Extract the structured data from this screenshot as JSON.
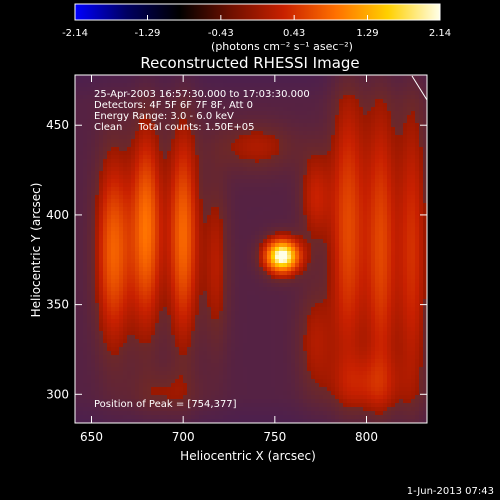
{
  "chart_data": {
    "type": "heatmap",
    "title": "Reconstructed RHESSI Image",
    "xlabel": "Heliocentric X (arcsec)",
    "ylabel": "Heliocentric Y (arcsec)",
    "xlim": [
      641,
      833
    ],
    "ylim": [
      284,
      478
    ],
    "x_ticks": [
      650,
      700,
      750,
      800
    ],
    "y_ticks": [
      300,
      350,
      400,
      450
    ],
    "colorbar": {
      "min": -2.14,
      "max": 2.14,
      "ticks": [
        "-2.14",
        "-1.29",
        "-0.43",
        "0.43",
        "1.29",
        "2.14"
      ],
      "label": "(photons cm⁻² s⁻¹ asec⁻²)",
      "colormap": [
        "#0000ff",
        "#000060",
        "#000000",
        "#701000",
        "#c82000",
        "#ff7000",
        "#ffd000",
        "#ffffe8"
      ]
    },
    "annotations": [
      "25-Apr-2003 16:57:30.000 to 17:03:30.000",
      "Detectors: 4F 5F 6F 7F 8F, Att 0",
      "Energy Range: 3.0 - 6.0 keV",
      "Clean     Total counts: 1.50E+05"
    ],
    "peak_label": "Position of Peak = [754,377]",
    "peak": [
      754,
      377
    ],
    "background_level": -0.35,
    "sources": [
      {
        "x": 754,
        "y": 377,
        "sigma": 7,
        "amp": 2.4
      },
      {
        "x": 754,
        "y": 377,
        "sigma": 3,
        "amp": 0.6
      }
    ],
    "ridges": [
      {
        "x": 662,
        "y": 380,
        "sx": 7,
        "sy": 38,
        "amp": 1.25
      },
      {
        "x": 680,
        "y": 392,
        "sx": 6,
        "sy": 40,
        "amp": 1.35
      },
      {
        "x": 700,
        "y": 388,
        "sx": 6,
        "sy": 42,
        "amp": 1.3
      },
      {
        "x": 718,
        "y": 372,
        "sx": 5,
        "sy": 34,
        "amp": 0.6
      },
      {
        "x": 790,
        "y": 392,
        "sx": 7,
        "sy": 58,
        "amp": 1.05
      },
      {
        "x": 808,
        "y": 382,
        "sx": 6,
        "sy": 60,
        "amp": 1.0
      },
      {
        "x": 825,
        "y": 380,
        "sx": 6,
        "sy": 62,
        "amp": 0.85
      },
      {
        "x": 772,
        "y": 410,
        "sx": 6,
        "sy": 18,
        "amp": 0.7
      },
      {
        "x": 772,
        "y": 330,
        "sx": 7,
        "sy": 22,
        "amp": 0.55
      },
      {
        "x": 740,
        "y": 438,
        "sx": 16,
        "sy": 10,
        "amp": 0.55
      },
      {
        "x": 690,
        "y": 300,
        "sx": 14,
        "sy": 10,
        "amp": 0.35
      },
      {
        "x": 800,
        "y": 305,
        "sx": 14,
        "sy": 12,
        "amp": 0.5
      }
    ],
    "grid": "off",
    "legend": "none"
  },
  "timestamp": "1-Jun-2013 07:43"
}
